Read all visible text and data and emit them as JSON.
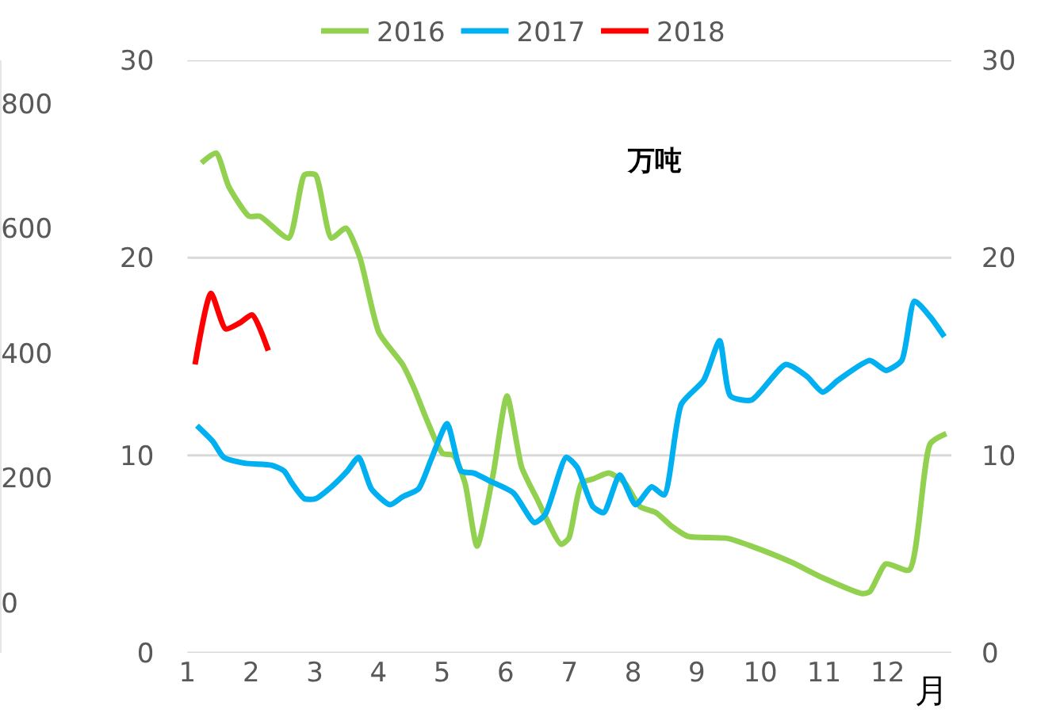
{
  "chart_data": {
    "type": "line",
    "xlabel": "月",
    "annotations": [
      "万吨"
    ],
    "xlim": [
      1,
      13
    ],
    "xticks": [
      1,
      2,
      3,
      4,
      5,
      6,
      7,
      8,
      9,
      10,
      11,
      12
    ],
    "ylim": [
      0,
      30
    ],
    "yticks": [
      0,
      10,
      20,
      30
    ],
    "y2lim": [
      0,
      30
    ],
    "y2ticks": [
      0,
      10,
      20,
      30
    ],
    "y3lim": [
      -80,
      870
    ],
    "y3ticks": [
      0,
      200,
      400,
      600,
      800
    ],
    "grid": "y",
    "legend": "top",
    "marker": "none",
    "line_style": "solid",
    "series": [
      {
        "name": "2016",
        "color": "#92d050",
        "x": [
          1.22,
          1.45,
          1.65,
          1.97,
          2.14,
          2.59,
          2.84,
          3.01,
          3.26,
          3.49,
          3.71,
          4.01,
          4.38,
          4.56,
          4.76,
          5.01,
          5.18,
          5.36,
          5.55,
          5.8,
          6.02,
          6.25,
          6.49,
          6.87,
          6.99,
          7.19,
          7.37,
          7.62,
          7.87,
          8.11,
          8.36,
          8.61,
          8.86,
          9.48,
          9.86,
          10.48,
          10.98,
          11.6,
          11.72,
          11.97,
          12.34,
          12.67,
          12.92
        ],
        "values": [
          24.8,
          25.3,
          23.6,
          22.1,
          22.1,
          21.0,
          24.2,
          24.2,
          21.0,
          21.5,
          20.0,
          16.2,
          14.6,
          13.4,
          11.8,
          10.1,
          10.0,
          8.6,
          5.4,
          9.0,
          13.0,
          9.4,
          7.8,
          5.5,
          5.8,
          8.6,
          8.8,
          9.1,
          8.6,
          7.4,
          7.1,
          6.4,
          5.9,
          5.8,
          5.4,
          4.6,
          3.8,
          3.0,
          3.1,
          4.5,
          4.2,
          10.6,
          11.1
        ]
      },
      {
        "name": "2017",
        "color": "#00b0f0",
        "x": [
          1.15,
          1.4,
          1.57,
          1.9,
          2.32,
          2.52,
          2.64,
          2.84,
          3.01,
          3.26,
          3.51,
          3.69,
          3.89,
          4.18,
          4.38,
          4.63,
          4.83,
          5.08,
          5.3,
          5.5,
          5.75,
          6.12,
          6.45,
          6.62,
          6.95,
          7.12,
          7.37,
          7.54,
          7.79,
          8.04,
          8.29,
          8.49,
          8.76,
          9.11,
          9.36,
          9.53,
          9.86,
          10.4,
          10.73,
          10.98,
          11.22,
          11.72,
          11.97,
          12.22,
          12.42,
          12.67,
          12.89
        ],
        "values": [
          11.5,
          10.7,
          9.9,
          9.6,
          9.5,
          9.2,
          8.6,
          7.8,
          7.8,
          8.4,
          9.2,
          9.9,
          8.3,
          7.5,
          7.9,
          8.3,
          9.8,
          11.6,
          9.2,
          9.1,
          8.7,
          8.1,
          6.6,
          7.0,
          9.9,
          9.4,
          7.4,
          7.1,
          9.0,
          7.5,
          8.4,
          8.0,
          12.6,
          13.8,
          15.8,
          13.0,
          12.8,
          14.6,
          14.0,
          13.2,
          13.8,
          14.8,
          14.3,
          14.8,
          17.8,
          17.0,
          16.0
        ]
      },
      {
        "name": "2018",
        "color": "#ff0000",
        "x": [
          1.12,
          1.37,
          1.6,
          1.82,
          2.02,
          2.27
        ],
        "values": [
          14.6,
          18.2,
          16.4,
          16.7,
          17.1,
          15.3
        ]
      }
    ]
  }
}
